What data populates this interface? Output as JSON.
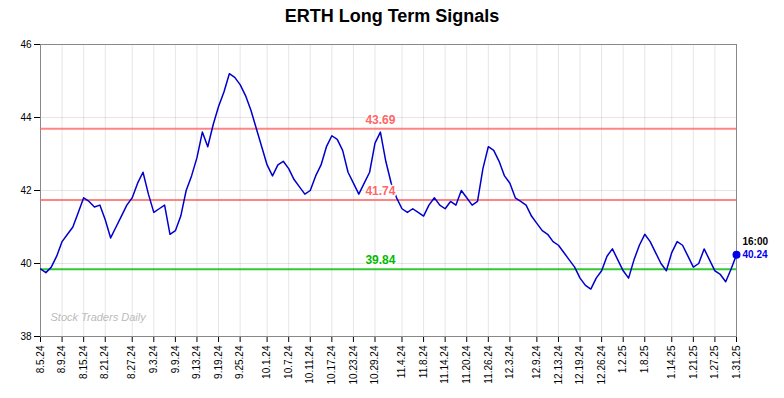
{
  "chart_data": {
    "type": "line",
    "title": "ERTH Long Term Signals",
    "categories": [
      "8.5.24",
      null,
      null,
      null,
      "8.9.24",
      null,
      null,
      null,
      "8.15.24",
      null,
      null,
      null,
      "8.21.24",
      null,
      null,
      null,
      null,
      "8.27.24",
      null,
      null,
      null,
      "9.3.24",
      null,
      null,
      null,
      "9.9.24",
      null,
      null,
      null,
      "9.13.24",
      null,
      null,
      null,
      "9.19.24",
      null,
      null,
      null,
      "9.25.24",
      null,
      null,
      null,
      null,
      "10.1.24",
      null,
      null,
      null,
      "10.7.24",
      null,
      null,
      null,
      "10.11.24",
      null,
      null,
      null,
      "10.17.24",
      null,
      null,
      null,
      "10.23.24",
      null,
      null,
      null,
      "10.29.24",
      null,
      null,
      null,
      null,
      "11.4.24",
      null,
      null,
      null,
      "11.8.24",
      null,
      null,
      null,
      "11.14.24",
      null,
      null,
      null,
      "11.20.24",
      null,
      null,
      null,
      "11.26.24",
      null,
      null,
      null,
      "12.3.24",
      null,
      null,
      null,
      null,
      "12.9.24",
      null,
      null,
      null,
      "12.13.24",
      null,
      null,
      null,
      "12.19.24",
      null,
      null,
      null,
      "12.26.24",
      null,
      null,
      null,
      "1.2.25",
      null,
      null,
      null,
      "1.8.25",
      null,
      null,
      null,
      null,
      "1.14.25",
      null,
      null,
      null,
      "1.21.25",
      null,
      null,
      null,
      "1.27.25",
      null,
      null,
      null,
      "1.31.25"
    ],
    "values": [
      39.85,
      39.75,
      39.9,
      40.2,
      40.6,
      40.8,
      41.0,
      41.4,
      41.8,
      41.7,
      41.55,
      41.6,
      41.2,
      40.7,
      41.0,
      41.3,
      41.6,
      41.8,
      42.2,
      42.5,
      41.9,
      41.4,
      41.5,
      41.6,
      40.8,
      40.9,
      41.3,
      42.0,
      42.4,
      42.9,
      43.6,
      43.2,
      43.8,
      44.3,
      44.7,
      45.2,
      45.1,
      44.9,
      44.6,
      44.2,
      43.7,
      43.2,
      42.7,
      42.4,
      42.7,
      42.8,
      42.6,
      42.3,
      42.1,
      41.9,
      42.0,
      42.4,
      42.7,
      43.2,
      43.5,
      43.4,
      43.1,
      42.5,
      42.2,
      41.9,
      42.2,
      42.5,
      43.3,
      43.6,
      42.8,
      42.2,
      41.8,
      41.5,
      41.4,
      41.5,
      41.4,
      41.3,
      41.6,
      41.8,
      41.6,
      41.5,
      41.7,
      41.6,
      42.0,
      41.8,
      41.6,
      41.7,
      42.6,
      43.2,
      43.1,
      42.8,
      42.4,
      42.2,
      41.8,
      41.7,
      41.6,
      41.3,
      41.1,
      40.9,
      40.8,
      40.6,
      40.5,
      40.3,
      40.1,
      39.9,
      39.6,
      39.4,
      39.3,
      39.6,
      39.8,
      40.2,
      40.4,
      40.1,
      39.8,
      39.6,
      40.1,
      40.5,
      40.8,
      40.6,
      40.3,
      40.0,
      39.8,
      40.3,
      40.6,
      40.5,
      40.2,
      39.9,
      40.0,
      40.4,
      40.1,
      39.8,
      39.7,
      39.5,
      39.85,
      40.24
    ],
    "color": "#0000cc",
    "ylim": [
      38,
      46
    ],
    "yticks": [
      38,
      40,
      42,
      44,
      46
    ],
    "grid": true,
    "hlines": [
      {
        "value": 43.69,
        "label": "43.69",
        "color": "#ff6666"
      },
      {
        "value": 41.74,
        "label": "41.74",
        "color": "#ff6666"
      },
      {
        "value": 39.84,
        "label": "39.84",
        "color": "#00bb00"
      }
    ],
    "last_point": {
      "value": 40.24,
      "label": "40.24",
      "time": "16:00",
      "color": "#0000ee"
    },
    "watermark": "Stock Traders Daily"
  }
}
